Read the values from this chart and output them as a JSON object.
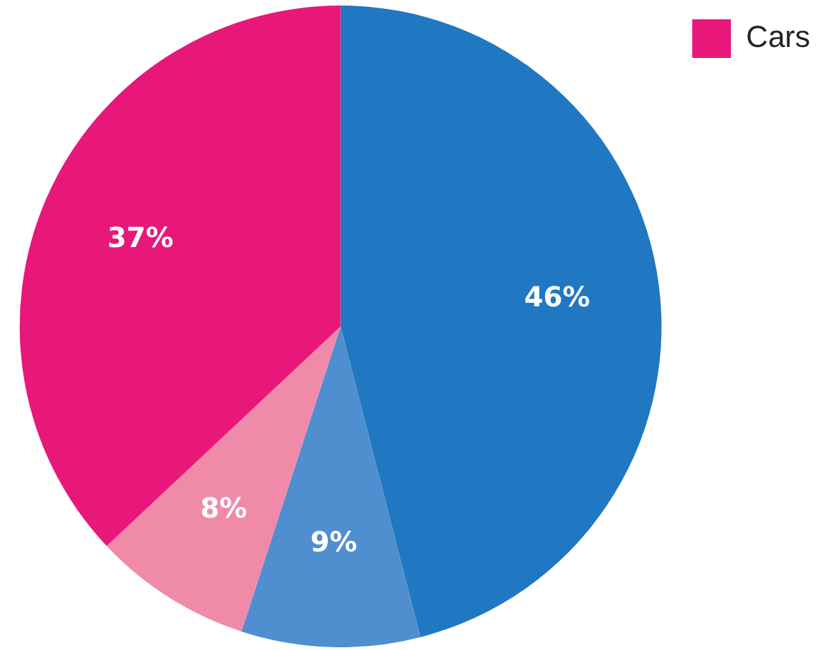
{
  "chart_data": {
    "type": "pie",
    "categories": [
      null,
      null,
      null,
      "Cars"
    ],
    "values": [
      46,
      9,
      8,
      37
    ],
    "colors": [
      "#1f78c1",
      "#4f8fcf",
      "#f08aa9",
      "#e8177a"
    ],
    "value_labels": [
      "46%",
      "9%",
      "8%",
      "37%"
    ],
    "legend": "top right"
  }
}
